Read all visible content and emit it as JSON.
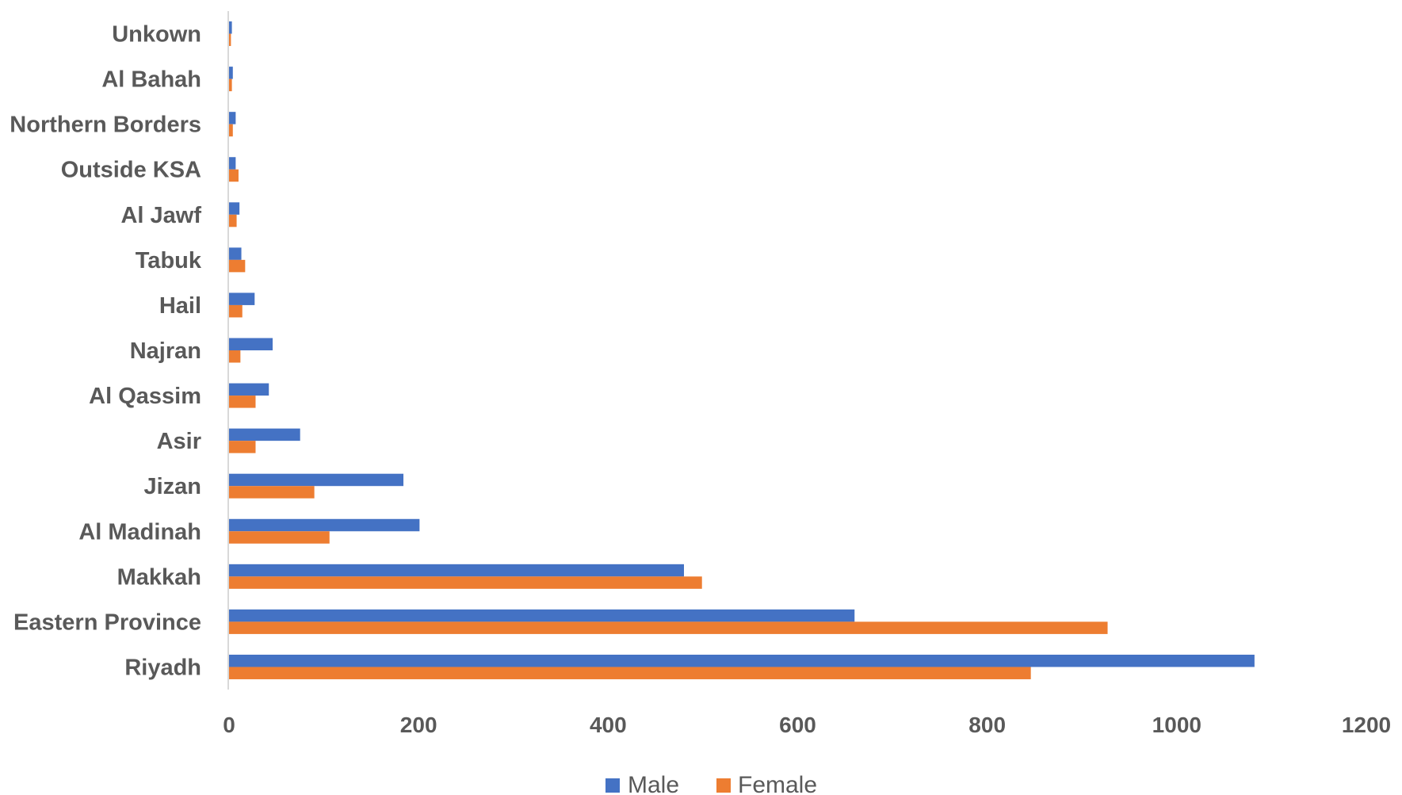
{
  "chart_data": {
    "type": "bar",
    "orientation": "horizontal",
    "categories": [
      "Riyadh",
      "Eastern Province",
      "Makkah",
      "Al Madinah",
      "Jizan",
      "Asir",
      "Al Qassim",
      "Najran",
      "Hail",
      "Tabuk",
      "Al Jawf",
      "Outside KSA",
      "Northern Borders",
      "Al Bahah",
      "Unkown"
    ],
    "series": [
      {
        "name": "Male",
        "color": "#4472C4",
        "values": [
          1082,
          660,
          480,
          201,
          184,
          75,
          42,
          46,
          27,
          13,
          11,
          7,
          7,
          4,
          3
        ]
      },
      {
        "name": "Female",
        "color": "#ED7D31",
        "values": [
          846,
          927,
          499,
          106,
          90,
          28,
          28,
          12,
          14,
          17,
          8,
          10,
          4,
          3,
          2
        ]
      }
    ],
    "xlim": [
      0,
      1200
    ],
    "xticks": [
      "0",
      "200",
      "400",
      "600",
      "800",
      "1000",
      "1200"
    ],
    "grid": false,
    "legend_position": "bottom"
  }
}
